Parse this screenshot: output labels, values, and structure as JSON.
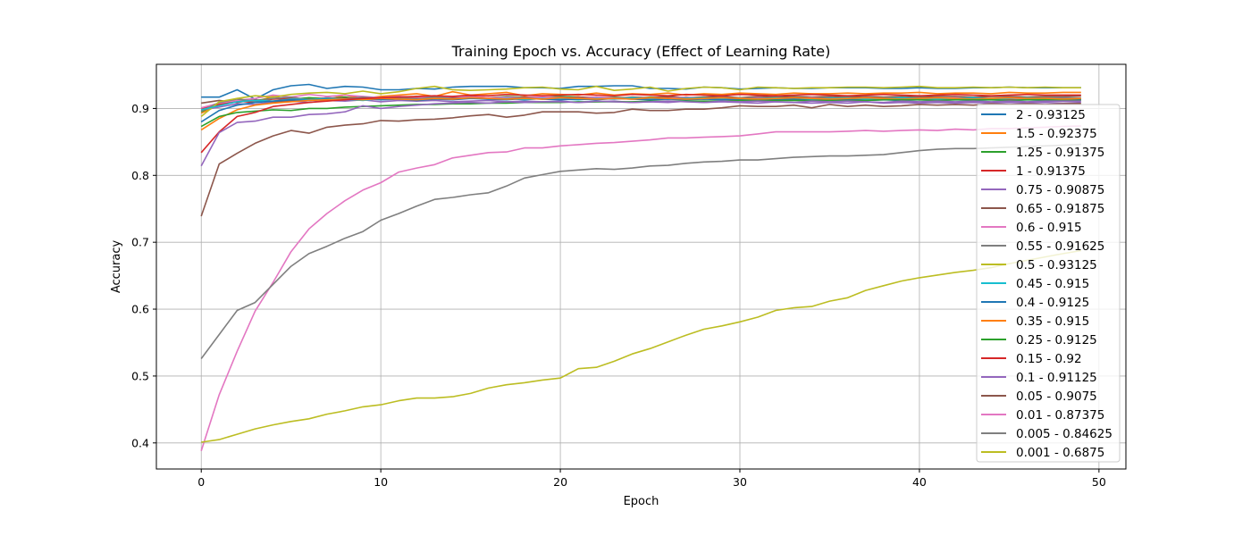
{
  "chart_data": {
    "type": "line",
    "title": "Training Epoch vs. Accuracy (Effect of Learning Rate)",
    "xlabel": "Epoch",
    "ylabel": "Accuracy",
    "xlim": [
      -2.5,
      51.5
    ],
    "ylim": [
      0.361,
      0.966
    ],
    "xticks": [
      0,
      10,
      20,
      30,
      40,
      50
    ],
    "yticks": [
      0.4,
      0.5,
      0.6,
      0.7,
      0.8,
      0.9
    ],
    "xtick_labels": [
      "0",
      "10",
      "20",
      "30",
      "40",
      "50"
    ],
    "ytick_labels": [
      "0.4",
      "0.5",
      "0.6",
      "0.7",
      "0.8",
      "0.9"
    ],
    "grid": true,
    "legend_position": "right",
    "x": [
      0,
      1,
      2,
      3,
      4,
      5,
      6,
      7,
      8,
      9,
      10,
      11,
      12,
      13,
      14,
      15,
      16,
      17,
      18,
      19,
      20,
      21,
      22,
      23,
      24,
      25,
      26,
      27,
      28,
      29,
      30,
      31,
      32,
      33,
      34,
      35,
      36,
      37,
      38,
      39,
      40,
      41,
      42,
      43,
      44,
      45,
      46,
      47,
      48,
      49
    ],
    "series": [
      {
        "name": "2 - 0.93125",
        "color": "#1f77b4",
        "values": [
          0.917,
          0.917,
          0.928,
          0.914,
          0.928,
          0.934,
          0.936,
          0.93,
          0.933,
          0.932,
          0.928,
          0.928,
          0.93,
          0.929,
          0.932,
          0.933,
          0.933,
          0.933,
          0.931,
          0.931,
          0.93,
          0.933,
          0.933,
          0.934,
          0.934,
          0.93,
          0.93,
          0.929,
          0.932,
          0.931,
          0.929,
          0.93,
          0.931,
          0.93,
          0.93,
          0.931,
          0.931,
          0.931,
          0.93,
          0.93,
          0.931,
          0.93,
          0.93,
          0.931,
          0.931,
          0.932,
          0.931,
          0.931,
          0.931,
          0.931
        ]
      },
      {
        "name": "1.5 - 0.92375",
        "color": "#ff7f0e",
        "values": [
          0.893,
          0.905,
          0.915,
          0.91,
          0.918,
          0.912,
          0.916,
          0.913,
          0.92,
          0.915,
          0.918,
          0.92,
          0.922,
          0.918,
          0.925,
          0.92,
          0.922,
          0.924,
          0.919,
          0.922,
          0.921,
          0.92,
          0.923,
          0.92,
          0.922,
          0.921,
          0.923,
          0.92,
          0.922,
          0.921,
          0.923,
          0.922,
          0.921,
          0.923,
          0.922,
          0.922,
          0.923,
          0.922,
          0.923,
          0.923,
          0.924,
          0.922,
          0.923,
          0.923,
          0.922,
          0.924,
          0.923,
          0.923,
          0.924,
          0.924
        ]
      },
      {
        "name": "1.25 - 0.91375",
        "color": "#2ca02c",
        "values": [
          0.895,
          0.908,
          0.91,
          0.912,
          0.915,
          0.914,
          0.916,
          0.915,
          0.917,
          0.914,
          0.916,
          0.915,
          0.918,
          0.916,
          0.917,
          0.917,
          0.916,
          0.918,
          0.917,
          0.916,
          0.918,
          0.917,
          0.916,
          0.917,
          0.915,
          0.917,
          0.916,
          0.916,
          0.917,
          0.915,
          0.916,
          0.916,
          0.915,
          0.916,
          0.915,
          0.914,
          0.916,
          0.915,
          0.914,
          0.915,
          0.914,
          0.915,
          0.914,
          0.914,
          0.915,
          0.913,
          0.914,
          0.914,
          0.913,
          0.914
        ]
      },
      {
        "name": "1 - 0.91375",
        "color": "#d62728",
        "values": [
          0.9,
          0.906,
          0.911,
          0.909,
          0.914,
          0.915,
          0.913,
          0.916,
          0.915,
          0.917,
          0.916,
          0.918,
          0.915,
          0.917,
          0.916,
          0.918,
          0.916,
          0.915,
          0.917,
          0.916,
          0.915,
          0.917,
          0.916,
          0.915,
          0.916,
          0.914,
          0.916,
          0.915,
          0.914,
          0.915,
          0.913,
          0.915,
          0.914,
          0.913,
          0.915,
          0.914,
          0.913,
          0.914,
          0.913,
          0.914,
          0.913,
          0.914,
          0.913,
          0.914,
          0.913,
          0.914,
          0.913,
          0.914,
          0.913,
          0.914
        ]
      },
      {
        "name": "0.75 - 0.90875",
        "color": "#9467bd",
        "values": [
          0.898,
          0.902,
          0.907,
          0.906,
          0.91,
          0.911,
          0.909,
          0.912,
          0.911,
          0.913,
          0.91,
          0.912,
          0.911,
          0.912,
          0.91,
          0.911,
          0.912,
          0.91,
          0.911,
          0.91,
          0.911,
          0.909,
          0.91,
          0.911,
          0.909,
          0.91,
          0.909,
          0.911,
          0.909,
          0.91,
          0.909,
          0.908,
          0.91,
          0.909,
          0.908,
          0.909,
          0.908,
          0.91,
          0.908,
          0.909,
          0.908,
          0.909,
          0.908,
          0.909,
          0.908,
          0.909,
          0.908,
          0.909,
          0.908,
          0.909
        ]
      },
      {
        "name": "0.65 - 0.91875",
        "color": "#8c564b",
        "values": [
          0.908,
          0.912,
          0.909,
          0.913,
          0.91,
          0.912,
          0.914,
          0.912,
          0.915,
          0.913,
          0.916,
          0.914,
          0.915,
          0.916,
          0.914,
          0.916,
          0.915,
          0.917,
          0.916,
          0.915,
          0.917,
          0.916,
          0.917,
          0.915,
          0.917,
          0.916,
          0.918,
          0.916,
          0.917,
          0.918,
          0.916,
          0.918,
          0.917,
          0.918,
          0.917,
          0.918,
          0.917,
          0.918,
          0.917,
          0.918,
          0.917,
          0.918,
          0.918,
          0.917,
          0.918,
          0.918,
          0.917,
          0.918,
          0.918,
          0.919
        ]
      },
      {
        "name": "0.6 - 0.915",
        "color": "#e377c2",
        "values": [
          0.901,
          0.908,
          0.912,
          0.915,
          0.92,
          0.917,
          0.921,
          0.918,
          0.92,
          0.918,
          0.916,
          0.918,
          0.917,
          0.916,
          0.918,
          0.917,
          0.916,
          0.917,
          0.916,
          0.917,
          0.916,
          0.915,
          0.917,
          0.916,
          0.915,
          0.916,
          0.915,
          0.917,
          0.915,
          0.916,
          0.915,
          0.916,
          0.915,
          0.914,
          0.916,
          0.915,
          0.914,
          0.916,
          0.915,
          0.914,
          0.915,
          0.914,
          0.916,
          0.915,
          0.914,
          0.915,
          0.914,
          0.915,
          0.914,
          0.915
        ]
      },
      {
        "name": "0.55 - 0.91625",
        "color": "#7f7f7f",
        "values": [
          0.896,
          0.909,
          0.914,
          0.911,
          0.915,
          0.917,
          0.913,
          0.916,
          0.914,
          0.917,
          0.915,
          0.916,
          0.914,
          0.917,
          0.915,
          0.916,
          0.914,
          0.915,
          0.916,
          0.914,
          0.915,
          0.916,
          0.914,
          0.915,
          0.916,
          0.915,
          0.914,
          0.916,
          0.915,
          0.914,
          0.916,
          0.915,
          0.916,
          0.914,
          0.915,
          0.916,
          0.915,
          0.914,
          0.916,
          0.915,
          0.916,
          0.915,
          0.914,
          0.916,
          0.915,
          0.916,
          0.915,
          0.916,
          0.916,
          0.916
        ]
      },
      {
        "name": "0.5 - 0.93125",
        "color": "#bcbd22",
        "values": [
          0.888,
          0.91,
          0.915,
          0.919,
          0.917,
          0.921,
          0.923,
          0.924,
          0.922,
          0.926,
          0.922,
          0.925,
          0.93,
          0.933,
          0.928,
          0.927,
          0.928,
          0.929,
          0.931,
          0.932,
          0.929,
          0.928,
          0.933,
          0.927,
          0.929,
          0.932,
          0.926,
          0.93,
          0.932,
          0.931,
          0.928,
          0.932,
          0.931,
          0.93,
          0.931,
          0.931,
          0.932,
          0.932,
          0.931,
          0.932,
          0.933,
          0.931,
          0.931,
          0.932,
          0.931,
          0.932,
          0.931,
          0.932,
          0.931,
          0.931
        ]
      },
      {
        "name": "0.45 - 0.915",
        "color": "#17becf",
        "values": [
          0.898,
          0.904,
          0.91,
          0.912,
          0.911,
          0.914,
          0.913,
          0.915,
          0.914,
          0.912,
          0.915,
          0.914,
          0.913,
          0.915,
          0.914,
          0.916,
          0.914,
          0.915,
          0.913,
          0.915,
          0.914,
          0.913,
          0.915,
          0.914,
          0.916,
          0.915,
          0.914,
          0.915,
          0.916,
          0.914,
          0.915,
          0.914,
          0.916,
          0.915,
          0.914,
          0.915,
          0.916,
          0.914,
          0.915,
          0.916,
          0.915,
          0.914,
          0.915,
          0.916,
          0.914,
          0.915,
          0.916,
          0.915,
          0.914,
          0.915
        ]
      },
      {
        "name": "0.4 - 0.9125",
        "color": "#1f77b4",
        "values": [
          0.88,
          0.897,
          0.905,
          0.909,
          0.911,
          0.913,
          0.912,
          0.914,
          0.913,
          0.915,
          0.913,
          0.914,
          0.912,
          0.914,
          0.913,
          0.915,
          0.914,
          0.913,
          0.915,
          0.914,
          0.913,
          0.914,
          0.913,
          0.915,
          0.914,
          0.913,
          0.914,
          0.913,
          0.914,
          0.913,
          0.914,
          0.912,
          0.913,
          0.914,
          0.912,
          0.913,
          0.914,
          0.912,
          0.913,
          0.912,
          0.913,
          0.912,
          0.913,
          0.912,
          0.913,
          0.912,
          0.913,
          0.912,
          0.912,
          0.913
        ]
      },
      {
        "name": "0.35 - 0.915",
        "color": "#ff7f0e",
        "values": [
          0.868,
          0.885,
          0.898,
          0.905,
          0.908,
          0.91,
          0.912,
          0.913,
          0.914,
          0.913,
          0.915,
          0.914,
          0.913,
          0.915,
          0.914,
          0.916,
          0.915,
          0.914,
          0.915,
          0.914,
          0.916,
          0.915,
          0.914,
          0.915,
          0.914,
          0.916,
          0.915,
          0.914,
          0.915,
          0.916,
          0.915,
          0.914,
          0.915,
          0.916,
          0.915,
          0.914,
          0.915,
          0.916,
          0.915,
          0.914,
          0.915,
          0.916,
          0.915,
          0.914,
          0.915,
          0.916,
          0.915,
          0.915,
          0.914,
          0.915
        ]
      },
      {
        "name": "0.25 - 0.9125",
        "color": "#2ca02c",
        "values": [
          0.873,
          0.888,
          0.894,
          0.896,
          0.898,
          0.897,
          0.9,
          0.9,
          0.902,
          0.903,
          0.904,
          0.905,
          0.906,
          0.906,
          0.907,
          0.907,
          0.908,
          0.908,
          0.909,
          0.909,
          0.909,
          0.91,
          0.91,
          0.91,
          0.91,
          0.911,
          0.911,
          0.911,
          0.911,
          0.911,
          0.912,
          0.912,
          0.912,
          0.912,
          0.912,
          0.912,
          0.912,
          0.912,
          0.913,
          0.913,
          0.913,
          0.912,
          0.913,
          0.913,
          0.913,
          0.912,
          0.913,
          0.913,
          0.912,
          0.912
        ]
      },
      {
        "name": "0.15 - 0.92",
        "color": "#d62728",
        "values": [
          0.834,
          0.865,
          0.888,
          0.894,
          0.903,
          0.906,
          0.909,
          0.911,
          0.913,
          0.915,
          0.916,
          0.917,
          0.918,
          0.919,
          0.918,
          0.92,
          0.919,
          0.921,
          0.92,
          0.919,
          0.92,
          0.921,
          0.92,
          0.919,
          0.921,
          0.92,
          0.919,
          0.921,
          0.92,
          0.919,
          0.921,
          0.92,
          0.919,
          0.92,
          0.921,
          0.92,
          0.919,
          0.92,
          0.921,
          0.92,
          0.919,
          0.92,
          0.921,
          0.92,
          0.919,
          0.92,
          0.921,
          0.92,
          0.92,
          0.92
        ]
      },
      {
        "name": "0.1 - 0.91125",
        "color": "#9467bd",
        "values": [
          0.814,
          0.864,
          0.879,
          0.881,
          0.887,
          0.887,
          0.891,
          0.892,
          0.895,
          0.904,
          0.9,
          0.903,
          0.905,
          0.907,
          0.908,
          0.909,
          0.908,
          0.91,
          0.909,
          0.91,
          0.91,
          0.909,
          0.911,
          0.91,
          0.909,
          0.91,
          0.911,
          0.91,
          0.909,
          0.911,
          0.91,
          0.911,
          0.91,
          0.909,
          0.911,
          0.91,
          0.911,
          0.91,
          0.909,
          0.911,
          0.91,
          0.911,
          0.91,
          0.911,
          0.91,
          0.911,
          0.91,
          0.911,
          0.911,
          0.911
        ]
      },
      {
        "name": "0.05 - 0.9075",
        "color": "#8c564b",
        "values": [
          0.739,
          0.817,
          0.833,
          0.848,
          0.859,
          0.867,
          0.863,
          0.872,
          0.875,
          0.877,
          0.882,
          0.881,
          0.883,
          0.884,
          0.886,
          0.889,
          0.891,
          0.887,
          0.89,
          0.895,
          0.895,
          0.895,
          0.893,
          0.894,
          0.899,
          0.897,
          0.897,
          0.899,
          0.899,
          0.901,
          0.904,
          0.903,
          0.903,
          0.905,
          0.901,
          0.906,
          0.903,
          0.905,
          0.903,
          0.904,
          0.906,
          0.905,
          0.906,
          0.905,
          0.907,
          0.906,
          0.907,
          0.906,
          0.907,
          0.9075
        ]
      },
      {
        "name": "0.01 - 0.87375",
        "color": "#e377c2",
        "values": [
          0.388,
          0.472,
          0.537,
          0.597,
          0.64,
          0.686,
          0.72,
          0.743,
          0.762,
          0.778,
          0.789,
          0.805,
          0.811,
          0.816,
          0.826,
          0.83,
          0.834,
          0.835,
          0.841,
          0.841,
          0.844,
          0.846,
          0.848,
          0.849,
          0.851,
          0.853,
          0.856,
          0.856,
          0.857,
          0.858,
          0.859,
          0.862,
          0.865,
          0.865,
          0.865,
          0.865,
          0.866,
          0.867,
          0.866,
          0.867,
          0.868,
          0.867,
          0.869,
          0.868,
          0.87,
          0.87,
          0.871,
          0.872,
          0.873,
          0.87375
        ]
      },
      {
        "name": "0.005 - 0.84625",
        "color": "#7f7f7f",
        "values": [
          0.526,
          0.562,
          0.598,
          0.61,
          0.637,
          0.664,
          0.683,
          0.694,
          0.706,
          0.716,
          0.733,
          0.743,
          0.754,
          0.764,
          0.767,
          0.771,
          0.774,
          0.784,
          0.796,
          0.801,
          0.806,
          0.808,
          0.81,
          0.809,
          0.811,
          0.814,
          0.815,
          0.818,
          0.82,
          0.821,
          0.823,
          0.823,
          0.825,
          0.827,
          0.828,
          0.829,
          0.829,
          0.83,
          0.831,
          0.834,
          0.837,
          0.839,
          0.84,
          0.84,
          0.841,
          0.842,
          0.843,
          0.844,
          0.845,
          0.84625
        ]
      },
      {
        "name": "0.001 - 0.6875",
        "color": "#bcbd22",
        "values": [
          0.401,
          0.405,
          0.413,
          0.421,
          0.427,
          0.432,
          0.436,
          0.443,
          0.448,
          0.454,
          0.457,
          0.463,
          0.467,
          0.467,
          0.469,
          0.474,
          0.482,
          0.487,
          0.49,
          0.494,
          0.497,
          0.511,
          0.513,
          0.522,
          0.533,
          0.541,
          0.551,
          0.561,
          0.57,
          0.575,
          0.581,
          0.588,
          0.598,
          0.602,
          0.604,
          0.612,
          0.617,
          0.628,
          0.635,
          0.642,
          0.647,
          0.651,
          0.655,
          0.658,
          0.662,
          0.668,
          0.673,
          0.678,
          0.683,
          0.6875
        ]
      }
    ]
  }
}
